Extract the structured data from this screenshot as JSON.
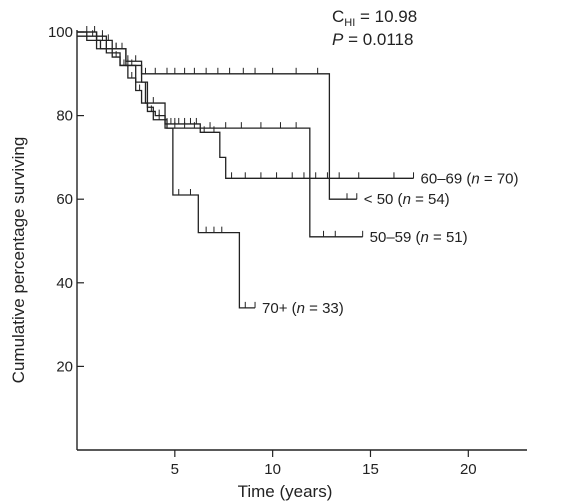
{
  "chart_data": {
    "type": "line",
    "subtype": "kaplan-meier step",
    "title": "",
    "xlabel": "Time (years)",
    "ylabel": "Cumulative percentage surviving",
    "xlim": [
      0,
      23
    ],
    "ylim": [
      0,
      100
    ],
    "x_ticks": [
      5,
      10,
      15,
      20
    ],
    "y_ticks": [
      20,
      40,
      60,
      80,
      100
    ],
    "grid": false,
    "legend": "none",
    "annotations": {
      "stat_prefix": "C",
      "stat_subscript": "HI",
      "stat_value": " = 10.98",
      "p_italic": "P",
      "p_value": " = 0.0118"
    },
    "series": [
      {
        "label_group": "60–69",
        "label_n": "70",
        "steps": [
          [
            0,
            100
          ],
          [
            0.5,
            98
          ],
          [
            1.2,
            96
          ],
          [
            1.8,
            94
          ],
          [
            2.2,
            92
          ],
          [
            2.6,
            89
          ],
          [
            3.0,
            86
          ],
          [
            3.3,
            83
          ],
          [
            3.6,
            81
          ],
          [
            4.0,
            80
          ],
          [
            4.5,
            78
          ],
          [
            6.3,
            76
          ],
          [
            7.3,
            70
          ],
          [
            7.6,
            65
          ],
          [
            17.2,
            65
          ]
        ],
        "censored": [
          1.0,
          1.5,
          2.0,
          2.4,
          2.8,
          3.2,
          3.5,
          3.8,
          4.2,
          4.6,
          4.8,
          5.0,
          5.2,
          5.5,
          5.8,
          6.1,
          6.5,
          7.0,
          7.9,
          8.6,
          9.4,
          10.2,
          11.0,
          11.6,
          12.2,
          12.8,
          13.4,
          14.4,
          16.2,
          17.2
        ]
      },
      {
        "label_group": "< 50",
        "label_n": "54",
        "steps": [
          [
            0,
            100
          ],
          [
            1.0,
            98
          ],
          [
            1.8,
            96
          ],
          [
            2.5,
            93
          ],
          [
            3.3,
            90
          ],
          [
            4.4,
            90
          ],
          [
            12.8,
            90
          ],
          [
            12.9,
            60
          ],
          [
            14.3,
            60
          ]
        ],
        "censored": [
          0.5,
          0.9,
          1.3,
          1.6,
          2.0,
          2.3,
          2.6,
          3.0,
          3.5,
          4.0,
          4.6,
          5.0,
          5.5,
          6.0,
          6.6,
          7.2,
          7.8,
          8.5,
          9.1,
          10.0,
          11.2,
          12.3,
          13.8,
          14.3
        ]
      },
      {
        "label_group": "50–59",
        "label_n": "51",
        "steps": [
          [
            0,
            99
          ],
          [
            1.5,
            96
          ],
          [
            2.5,
            92
          ],
          [
            3.3,
            88
          ],
          [
            3.6,
            82
          ],
          [
            3.9,
            79
          ],
          [
            4.6,
            77
          ],
          [
            11.8,
            77
          ],
          [
            11.9,
            51
          ],
          [
            14.6,
            51
          ]
        ],
        "censored": [
          0.8,
          1.3,
          2.0,
          2.8,
          4.2,
          5.0,
          5.5,
          6.0,
          6.8,
          7.6,
          8.4,
          9.4,
          10.4,
          11.2,
          12.6,
          13.2,
          14.6
        ]
      },
      {
        "label_group": "70+",
        "label_n": "33",
        "steps": [
          [
            0,
            100
          ],
          [
            1.0,
            96
          ],
          [
            1.5,
            95
          ],
          [
            2.2,
            92
          ],
          [
            3.0,
            88
          ],
          [
            3.5,
            83
          ],
          [
            4.5,
            77
          ],
          [
            4.9,
            61
          ],
          [
            6.1,
            61
          ],
          [
            6.2,
            52
          ],
          [
            8.2,
            52
          ],
          [
            8.3,
            34
          ],
          [
            9.1,
            34
          ]
        ],
        "censored": [
          2.6,
          3.3,
          3.9,
          5.2,
          5.8,
          6.6,
          7.0,
          7.4,
          8.6,
          9.1
        ]
      }
    ]
  }
}
